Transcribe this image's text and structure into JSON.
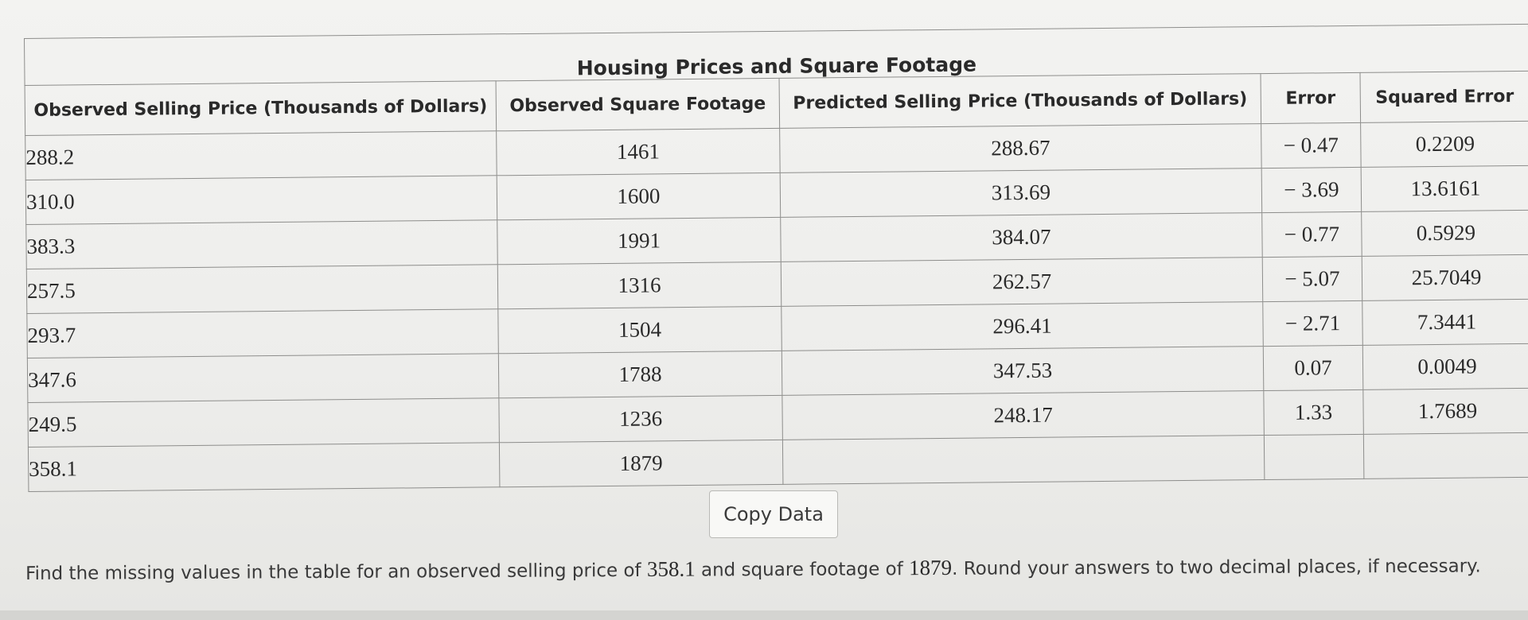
{
  "table": {
    "title": "Housing Prices and Square Footage",
    "headers": [
      "Observed Selling Price (Thousands of Dollars)",
      "Observed Square Footage",
      "Predicted Selling Price (Thousands of Dollars)",
      "Error",
      "Squared Error"
    ],
    "rows": [
      [
        "288.2",
        "1461",
        "288.67",
        "− 0.47",
        "0.2209"
      ],
      [
        "310.0",
        "1600",
        "313.69",
        "− 3.69",
        "13.6161"
      ],
      [
        "383.3",
        "1991",
        "384.07",
        "− 0.77",
        "0.5929"
      ],
      [
        "257.5",
        "1316",
        "262.57",
        "− 5.07",
        "25.7049"
      ],
      [
        "293.7",
        "1504",
        "296.41",
        "− 2.71",
        "7.3441"
      ],
      [
        "347.6",
        "1788",
        "347.53",
        "0.07",
        "0.0049"
      ],
      [
        "249.5",
        "1236",
        "248.17",
        "1.33",
        "1.7689"
      ],
      [
        "358.1",
        "1879",
        "",
        "",
        ""
      ]
    ]
  },
  "copy_button": {
    "label": "Copy Data"
  },
  "instructions": {
    "part1": "Find the missing values in the table for an observed selling price of ",
    "price": "358.1",
    "part2": " and square footage of ",
    "sqft": "1879",
    "part3": ". Round your answers to two decimal places, if necessary."
  }
}
